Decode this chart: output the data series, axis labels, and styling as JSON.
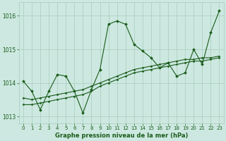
{
  "background_color": "#cce8e0",
  "grid_color": "#aaccbb",
  "line_color": "#1a5c1a",
  "title": "Graphe pression niveau de la mer (hPa)",
  "xlim": [
    -0.5,
    23.5
  ],
  "ylim": [
    1012.8,
    1016.4
  ],
  "yticks": [
    1013,
    1014,
    1015,
    1016
  ],
  "xticks": [
    0,
    1,
    2,
    3,
    4,
    5,
    6,
    7,
    8,
    9,
    10,
    11,
    12,
    13,
    14,
    15,
    16,
    17,
    18,
    19,
    20,
    21,
    22,
    23
  ],
  "series1_x": [
    0,
    1,
    2,
    3,
    4,
    5,
    6,
    7,
    8,
    9,
    10,
    11,
    12,
    13,
    14,
    15,
    16,
    17,
    18,
    19,
    20,
    21,
    22,
    23
  ],
  "series1_y": [
    1014.05,
    1013.75,
    1013.2,
    1013.75,
    1014.25,
    1014.2,
    1013.75,
    1013.1,
    1013.8,
    1014.4,
    1015.75,
    1015.85,
    1015.75,
    1015.15,
    1014.95,
    1014.75,
    1014.45,
    1014.6,
    1014.2,
    1014.3,
    1015.0,
    1014.55,
    1015.5,
    1016.15
  ],
  "series2_x": [
    0,
    1,
    2,
    3,
    4,
    5,
    6,
    7,
    8,
    9,
    10,
    11,
    12,
    13,
    14,
    15,
    16,
    17,
    18,
    19,
    20,
    21,
    22,
    23
  ],
  "series2_y": [
    1013.55,
    1013.5,
    1013.55,
    1013.6,
    1013.65,
    1013.7,
    1013.75,
    1013.8,
    1013.9,
    1014.0,
    1014.1,
    1014.2,
    1014.3,
    1014.4,
    1014.45,
    1014.5,
    1014.55,
    1014.6,
    1014.65,
    1014.7,
    1014.7,
    1014.75,
    1014.75,
    1014.8
  ],
  "series3_x": [
    0,
    1,
    2,
    3,
    4,
    5,
    6,
    7,
    8,
    9,
    10,
    11,
    12,
    13,
    14,
    15,
    16,
    17,
    18,
    19,
    20,
    21,
    22,
    23
  ],
  "series3_y": [
    1013.35,
    1013.35,
    1013.4,
    1013.45,
    1013.5,
    1013.55,
    1013.6,
    1013.65,
    1013.75,
    1013.9,
    1014.0,
    1014.1,
    1014.2,
    1014.3,
    1014.35,
    1014.4,
    1014.45,
    1014.5,
    1014.55,
    1014.6,
    1014.65,
    1014.65,
    1014.7,
    1014.75
  ]
}
